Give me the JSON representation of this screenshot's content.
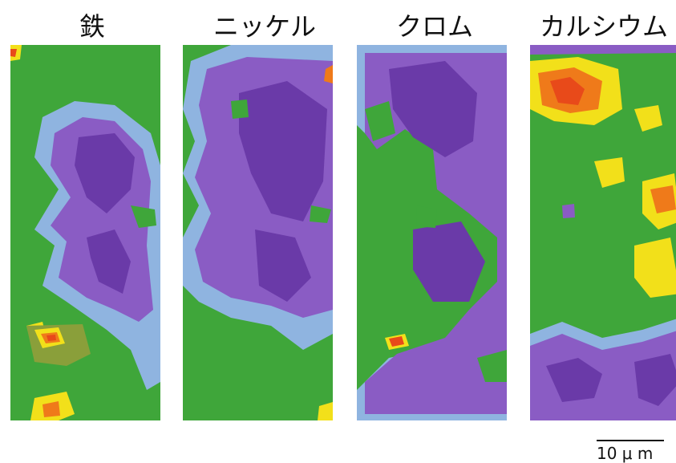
{
  "panels": [
    {
      "label": "鉄"
    },
    {
      "label": "ニッケル"
    },
    {
      "label": "クロム"
    },
    {
      "label": "カルシウム"
    }
  ],
  "scale_bar": {
    "label": "10 μ m"
  },
  "colors": {
    "background_low": "#3fa63a",
    "edge": "#8fb4e0",
    "medium": "#8a5cc4",
    "high": "#6a3aa8",
    "hot_yellow": "#f2e01a",
    "hot_orange": "#ef7a1a",
    "hot_red": "#e84a1a"
  }
}
